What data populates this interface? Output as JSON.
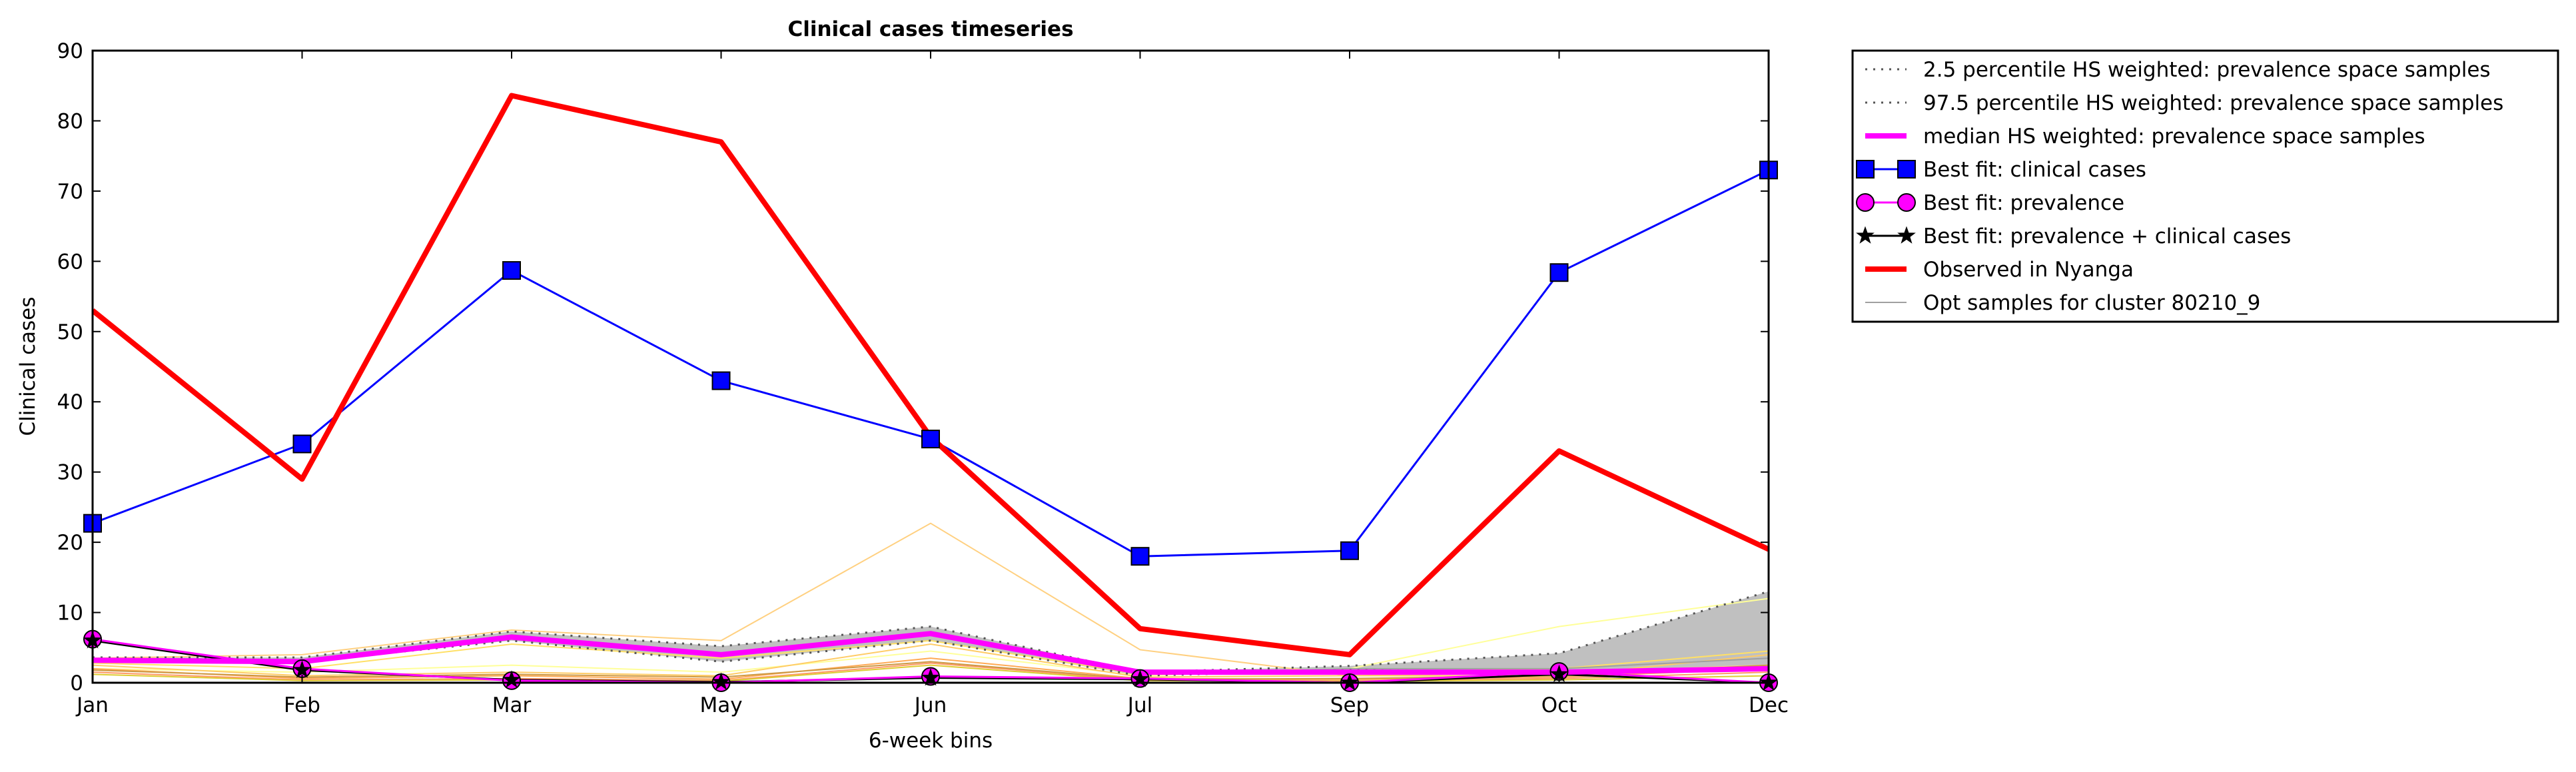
{
  "chart_data": {
    "type": "line",
    "title": "Clinical cases timeseries",
    "xlabel": "6-week bins",
    "ylabel": "Clinical cases",
    "categories": [
      "Jan",
      "Feb",
      "Mar",
      "May",
      "Jun",
      "Jul",
      "Sep",
      "Oct",
      "Dec"
    ],
    "yticks": [
      0,
      10,
      20,
      30,
      40,
      50,
      60,
      70,
      80,
      90
    ],
    "ylim": [
      0,
      90
    ],
    "grid": false,
    "legend_position": "outside-right",
    "series": [
      {
        "name": "2.5 percentile HS weighted: prevalence space samples",
        "color": "#555555",
        "style": "dotted",
        "values": [
          3.0,
          3.0,
          6.0,
          3.0,
          6.0,
          1.0,
          1.8,
          1.5,
          2.0
        ]
      },
      {
        "name": "97.5 percentile HS weighted: prevalence space samples",
        "color": "#555555",
        "style": "dotted",
        "values": [
          3.6,
          3.6,
          7.3,
          5.2,
          8.0,
          1.5,
          2.4,
          4.2,
          13.0
        ]
      },
      {
        "name": "median HS weighted: prevalence space samples",
        "color": "#ff00ff",
        "style": "solid-thick",
        "values": [
          3.2,
          3.0,
          6.5,
          4.0,
          7.0,
          1.5,
          1.5,
          1.5,
          2.0
        ]
      },
      {
        "name": "Best fit: clinical cases",
        "color": "#0000ff",
        "style": "line-square",
        "values": [
          22.7,
          34.0,
          58.7,
          43.0,
          34.7,
          18.0,
          18.8,
          58.4,
          73.0
        ]
      },
      {
        "name": "Best fit: prevalence",
        "color": "#ff00ff",
        "style": "line-circle",
        "values": [
          6.2,
          2.0,
          0.3,
          0.0,
          0.9,
          0.6,
          0.0,
          1.6,
          0.0
        ]
      },
      {
        "name": "Best fit: prevalence + clinical cases",
        "color": "#000000",
        "style": "line-star",
        "values": [
          6.0,
          1.8,
          0.4,
          0.1,
          0.7,
          0.5,
          0.0,
          1.2,
          0.0
        ]
      },
      {
        "name": "Observed in Nyanga",
        "color": "#ff0000",
        "style": "solid-thick",
        "values": [
          53.0,
          29.0,
          83.6,
          77.0,
          35.0,
          7.7,
          4.0,
          33.0,
          19.0
        ]
      },
      {
        "name": "Opt samples for cluster 80210_9",
        "color": "#a0a0a0",
        "style": "thin",
        "values": [
          3.3,
          3.2,
          6.8,
          4.2,
          7.2,
          1.2,
          2.0,
          2.0,
          3.5
        ]
      }
    ],
    "sample_lines": [
      {
        "color": "#ffd080",
        "values": [
          3.5,
          4.0,
          7.5,
          6.0,
          22.7,
          4.7,
          1.0,
          1.5,
          2.5
        ]
      },
      {
        "color": "#ffff99",
        "values": [
          2.0,
          1.5,
          2.5,
          1.5,
          4.5,
          1.0,
          2.0,
          8.0,
          12.0
        ]
      },
      {
        "color": "#ffcc66",
        "values": [
          2.5,
          1.0,
          1.5,
          1.0,
          5.5,
          0.8,
          1.0,
          1.0,
          4.0
        ]
      },
      {
        "color": "#ffaa55",
        "values": [
          2.0,
          0.6,
          1.0,
          0.5,
          3.5,
          0.6,
          0.5,
          0.8,
          2.0
        ]
      },
      {
        "color": "#ff9966",
        "values": [
          1.5,
          0.4,
          0.6,
          0.3,
          2.8,
          0.4,
          0.3,
          0.6,
          1.5
        ]
      },
      {
        "color": "#ddcc33",
        "values": [
          1.2,
          0.3,
          0.4,
          0.2,
          2.5,
          0.3,
          0.2,
          0.4,
          1.0
        ]
      },
      {
        "color": "#ffe066",
        "values": [
          2.8,
          2.0,
          5.5,
          3.5,
          6.0,
          1.2,
          1.5,
          2.0,
          4.5
        ]
      },
      {
        "color": "#cc9944",
        "values": [
          1.8,
          0.8,
          1.2,
          0.8,
          3.0,
          0.5,
          0.6,
          1.0,
          2.5
        ]
      }
    ]
  }
}
